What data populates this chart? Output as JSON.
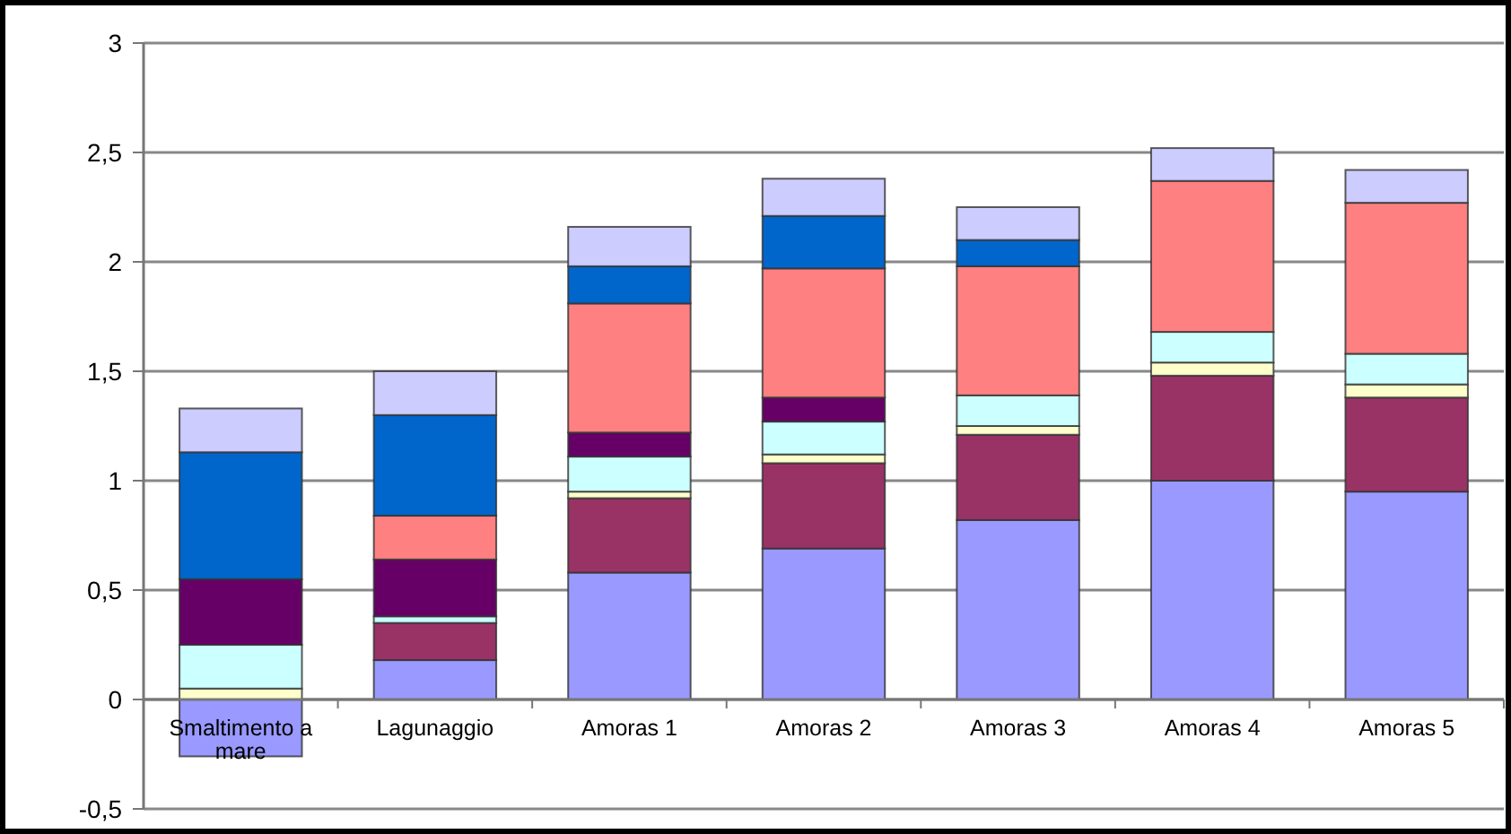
{
  "chart_data": {
    "type": "bar",
    "stacked": true,
    "categories": [
      "Smaltimento a mare",
      "Lagunaggio",
      "Amoras 1",
      "Amoras 2",
      "Amoras 3",
      "Amoras 4",
      "Amoras 5"
    ],
    "series": [
      {
        "color": "#9999ff",
        "values": [
          -0.26,
          0.18,
          0.58,
          0.69,
          0.82,
          1.0,
          0.95
        ]
      },
      {
        "color": "#993366",
        "values": [
          0,
          0.17,
          0.34,
          0.39,
          0.39,
          0.48,
          0.43
        ]
      },
      {
        "color": "#ffffcc",
        "values": [
          0.05,
          null,
          0.03,
          0.04,
          0.04,
          0.06,
          0.06
        ]
      },
      {
        "color": "#ccffff",
        "values": [
          0.2,
          0.03,
          0.16,
          0.15,
          0.14,
          0.14,
          0.14
        ]
      },
      {
        "color": "#660066",
        "values": [
          0.3,
          0.26,
          0.11,
          0.11,
          0,
          0,
          0
        ]
      },
      {
        "color": "#ff8080",
        "values": [
          0,
          0.2,
          0.59,
          0.59,
          0.59,
          0.69,
          0.69
        ]
      },
      {
        "color": "#0066cc",
        "values": [
          0.58,
          0.46,
          0.17,
          0.24,
          0.12,
          0,
          0
        ]
      },
      {
        "color": "#ccccff",
        "values": [
          0.2,
          0.2,
          0.18,
          0.17,
          0.15,
          0.15,
          0.15
        ]
      }
    ],
    "ylim": [
      -0.5,
      3
    ],
    "yticks": [
      {
        "value": -0.5,
        "label": "-0,5"
      },
      0,
      {
        "value": 0.5,
        "label": "0,5"
      },
      1,
      {
        "value": 1.5,
        "label": "1,5"
      },
      2,
      {
        "value": 2.5,
        "label": "2,5"
      },
      3
    ],
    "grid": "y"
  }
}
